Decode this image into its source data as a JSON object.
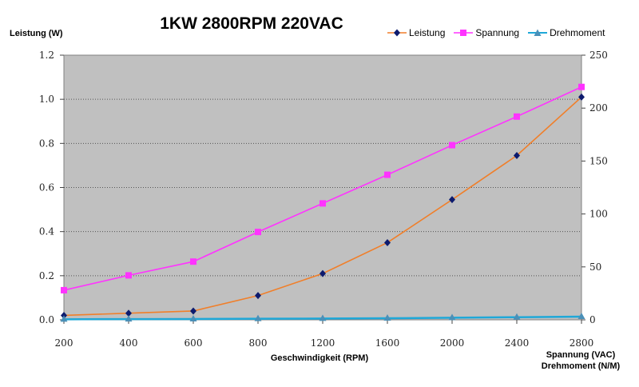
{
  "chart_data": {
    "type": "line",
    "title": "1KW 2800RPM 220VAC",
    "xlabel": "Geschwindigkeit (RPM)",
    "ylabel": "Leistung (W)",
    "y2label": [
      "Spannung (VAC)",
      "Drehmoment (N/M)"
    ],
    "x": [
      200,
      400,
      600,
      800,
      1200,
      1600,
      2000,
      2400,
      2800
    ],
    "x_tick_labels": [
      "200",
      "400",
      "600",
      "800",
      "1200",
      "1600",
      "2000",
      "2400",
      "2800"
    ],
    "ylim": [
      0,
      1.2
    ],
    "y_ticks": [
      "0.0",
      "0.2",
      "0.4",
      "0.6",
      "0.8",
      "1.0",
      "1.2"
    ],
    "y2lim": [
      0,
      250
    ],
    "y2_ticks": [
      "0",
      "50",
      "100",
      "150",
      "200",
      "250"
    ],
    "grid": "horizontal-dotted",
    "legend_position": "top-right",
    "series": [
      {
        "name": "Leistung",
        "axis": "left",
        "color": "#f07f2a",
        "marker": "diamond",
        "marker_color": "#0d1b6e",
        "values": [
          0.02,
          0.03,
          0.04,
          0.11,
          0.21,
          0.35,
          0.545,
          0.745,
          1.01
        ]
      },
      {
        "name": "Spannung",
        "axis": "right",
        "color": "#ff33ff",
        "marker": "square",
        "marker_color": "#ff33ff",
        "values": [
          28,
          42,
          55,
          83,
          110,
          137,
          165,
          192,
          220
        ]
      },
      {
        "name": "Drehmoment",
        "axis": "right",
        "color": "#1fa8d8",
        "marker": "triangle",
        "marker_color": "#4a90b8",
        "values": [
          0.5,
          0.7,
          0.8,
          1.0,
          1.2,
          1.5,
          2.0,
          2.5,
          3.0
        ]
      }
    ]
  }
}
